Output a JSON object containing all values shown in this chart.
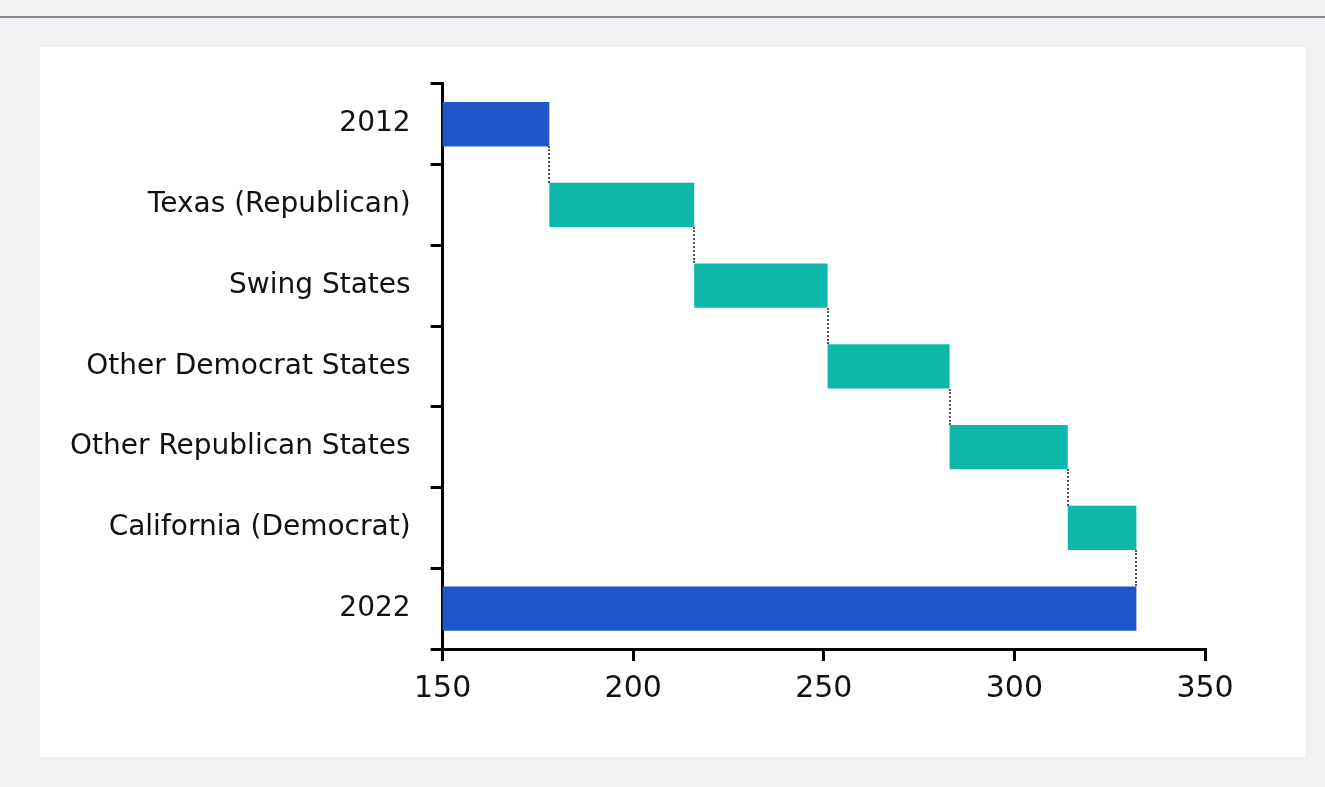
{
  "chart_data": {
    "type": "bar",
    "orientation": "horizontal",
    "categories": [
      "2012",
      "Texas (Republican)",
      "Swing States",
      "Other Democrat States",
      "Other Republican States",
      "California (Democrat)",
      "2022"
    ],
    "values": [
      178,
      38,
      35,
      32,
      31,
      18,
      332
    ],
    "base": [
      null,
      178,
      216,
      251,
      283,
      314,
      null
    ],
    "colors": [
      "#1f57c9",
      "#0db8aa",
      "#0db8aa",
      "#0db8aa",
      "#0db8aa",
      "#0db8aa",
      "#1f57c9"
    ],
    "xlim": [
      150,
      350
    ],
    "xticks": [
      150,
      200,
      250,
      300,
      350
    ],
    "grid": false,
    "legend": false
  }
}
